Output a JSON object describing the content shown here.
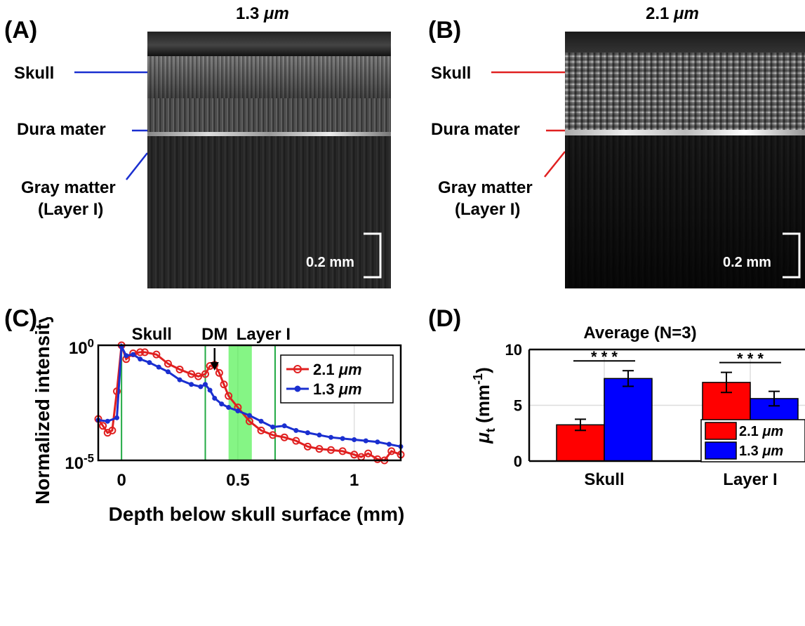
{
  "panels": {
    "a": {
      "letter": "(A)",
      "title_value": "1.3",
      "title_unit": "μm",
      "labels": [
        "Skull",
        "Dura mater",
        "Gray matter",
        "(Layer I)"
      ],
      "line_color": "#1a2fd0",
      "scalebar": "0.2 mm"
    },
    "b": {
      "letter": "(B)",
      "title_value": "2.1",
      "title_unit": "μm",
      "labels": [
        "Skull",
        "Dura mater",
        "Gray matter",
        "(Layer I)"
      ],
      "line_color": "#e02020",
      "scalebar": "0.2 mm"
    },
    "c": {
      "letter": "(C)"
    },
    "d": {
      "letter": "(D)"
    }
  },
  "chart_data": [
    {
      "type": "line",
      "panel": "C",
      "xlabel": "Depth below skull surface (mm)",
      "ylabel": "Normalized intensity",
      "xlim": [
        -0.1,
        1.2
      ],
      "ylim_log10": [
        -5,
        0
      ],
      "y_scale": "log",
      "x_ticks": [
        "0",
        "0.5",
        "1"
      ],
      "y_ticks": [
        "10^0",
        "10^-5"
      ],
      "grid": true,
      "legend": "top-right",
      "region_labels": [
        "Skull",
        "DM",
        "Layer I"
      ],
      "vertical_lines_x": [
        0.0,
        0.36,
        0.66
      ],
      "shaded_band_x": [
        0.46,
        0.56
      ],
      "shaded_band_color": "#33ee33",
      "series": [
        {
          "name": "2.1",
          "name_unit": "μm",
          "color": "#e02020",
          "marker": "open-circle",
          "x": [
            -0.1,
            -0.08,
            -0.06,
            -0.04,
            -0.02,
            0.0,
            0.02,
            0.05,
            0.08,
            0.1,
            0.15,
            0.2,
            0.25,
            0.3,
            0.33,
            0.36,
            0.38,
            0.4,
            0.42,
            0.44,
            0.46,
            0.5,
            0.55,
            0.6,
            0.65,
            0.7,
            0.75,
            0.8,
            0.85,
            0.9,
            0.95,
            1.0,
            1.03,
            1.06,
            1.1,
            1.13,
            1.16,
            1.2
          ],
          "log10_y": [
            -3.2,
            -3.5,
            -3.8,
            -3.7,
            -2.0,
            0.0,
            -0.6,
            -0.35,
            -0.3,
            -0.3,
            -0.4,
            -0.8,
            -1.05,
            -1.25,
            -1.35,
            -1.25,
            -0.9,
            -0.85,
            -1.2,
            -1.7,
            -2.2,
            -2.7,
            -3.3,
            -3.7,
            -3.9,
            -4.0,
            -4.15,
            -4.4,
            -4.5,
            -4.55,
            -4.6,
            -4.75,
            -4.85,
            -4.7,
            -4.95,
            -5.0,
            -4.6,
            -4.75
          ]
        },
        {
          "name": "1.3",
          "name_unit": "μm",
          "color": "#1a2fd0",
          "marker": "filled-dot",
          "x": [
            -0.1,
            -0.06,
            -0.02,
            0.0,
            0.02,
            0.05,
            0.08,
            0.12,
            0.16,
            0.2,
            0.25,
            0.3,
            0.34,
            0.36,
            0.38,
            0.4,
            0.43,
            0.46,
            0.5,
            0.55,
            0.6,
            0.65,
            0.7,
            0.75,
            0.8,
            0.85,
            0.9,
            0.95,
            1.0,
            1.05,
            1.1,
            1.15,
            1.2
          ],
          "log10_y": [
            -3.25,
            -3.3,
            -3.15,
            -0.05,
            -0.45,
            -0.4,
            -0.6,
            -0.75,
            -0.95,
            -1.15,
            -1.5,
            -1.7,
            -1.8,
            -1.7,
            -1.95,
            -2.3,
            -2.55,
            -2.7,
            -2.85,
            -3.05,
            -3.3,
            -3.55,
            -3.5,
            -3.7,
            -3.8,
            -3.9,
            -4.0,
            -4.05,
            -4.1,
            -4.15,
            -4.2,
            -4.3,
            -4.4
          ]
        }
      ]
    },
    {
      "type": "bar",
      "panel": "D",
      "title": "Average (N=3)",
      "ylabel_symbol": "μ",
      "ylabel_sub": "t",
      "ylabel_units": "(mm",
      "ylabel_exp": "-1",
      "ylabel_close": ")",
      "ylim": [
        0,
        10
      ],
      "y_ticks": [
        "0",
        "5",
        "10"
      ],
      "categories": [
        "Skull",
        "Layer I"
      ],
      "grid": true,
      "legend": "bottom-right",
      "significance": [
        "* * *",
        "* * *"
      ],
      "series": [
        {
          "name": "2.1",
          "name_unit": "μm",
          "color": "#ff0000",
          "values": [
            3.25,
            7.05
          ],
          "errors": [
            0.5,
            0.9
          ]
        },
        {
          "name": "1.3",
          "name_unit": "μm",
          "color": "#0000ff",
          "values": [
            7.4,
            5.6
          ],
          "errors": [
            0.7,
            0.65
          ]
        }
      ]
    }
  ]
}
